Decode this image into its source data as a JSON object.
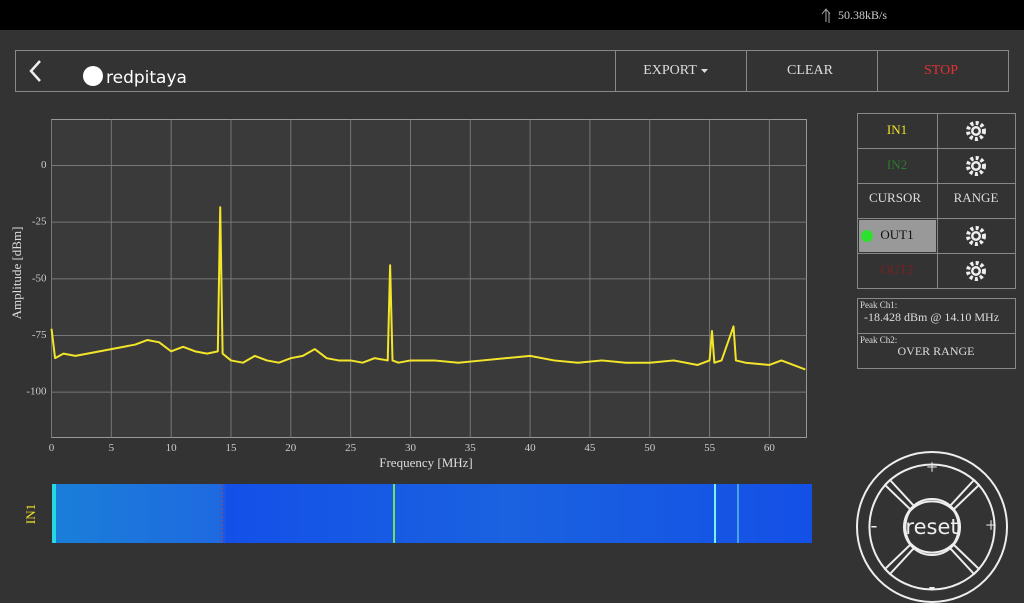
{
  "status_bar": {
    "speed": "50.38kB/s"
  },
  "header": {
    "logo": "redpitaya",
    "buttons": [
      "EXPORT",
      "CLEAR",
      "STOP"
    ]
  },
  "chart_data": {
    "type": "line",
    "xlabel": "Frequency  [MHz]",
    "ylabel": "Amplitude  [dBm]",
    "x": [
      0,
      0.3,
      1,
      2,
      3,
      4,
      5,
      6,
      7,
      8,
      9,
      10,
      11,
      12,
      13,
      13.9,
      14.1,
      14.3,
      15,
      16,
      17,
      18,
      19,
      20,
      21,
      22,
      23,
      24,
      25,
      26,
      27,
      28.1,
      28.3,
      28.5,
      29,
      30,
      32,
      34,
      36,
      38,
      40,
      42,
      44,
      46,
      48,
      50,
      52,
      54,
      55,
      55.2,
      55.4,
      56,
      57,
      57.2,
      58,
      60,
      61,
      62,
      63
    ],
    "series": [
      {
        "name": "IN1",
        "color": "#f2e52a",
        "values": [
          -72,
          -85,
          -83,
          -84,
          -83,
          -82,
          -81,
          -80,
          -79,
          -77,
          -78,
          -82,
          -80,
          -82,
          -83,
          -82,
          -18.4,
          -83,
          -86,
          -87,
          -84,
          -86,
          -87,
          -85,
          -84,
          -81,
          -85,
          -86,
          -86,
          -87,
          -85,
          -86,
          -44,
          -86,
          -87,
          -86,
          -86,
          -87,
          -86,
          -85,
          -84,
          -86,
          -87,
          -86,
          -87,
          -87,
          -86,
          -88,
          -86,
          -73,
          -87,
          -86,
          -71,
          -86,
          -87,
          -88,
          -86,
          -88,
          -90
        ]
      }
    ],
    "xlim": [
      0,
      63.1
    ],
    "ylim": [
      -120,
      20.3
    ],
    "xticks": [
      0,
      5,
      10,
      15,
      20,
      25,
      30,
      35,
      40,
      45,
      50,
      55,
      60
    ],
    "yticks": [
      0,
      -25,
      -50,
      -75,
      -100
    ],
    "grid": true
  },
  "panel": {
    "rows": [
      [
        "IN1",
        ""
      ],
      [
        "IN2",
        ""
      ],
      [
        "CURSOR",
        "RANGE"
      ],
      [
        "OUT1",
        ""
      ],
      [
        "OUT2",
        ""
      ]
    ]
  },
  "peaks": {
    "ch1_label": "Peak  Ch1:",
    "ch1_value": "-18.428  dBm @ 14.10  MHz",
    "ch2_label": "Peak  Ch2:",
    "ch2_value": "OVER RANGE"
  },
  "waterfall": {
    "label": "IN1"
  },
  "nav": {
    "up": "+",
    "down": "-",
    "left": "-",
    "right": "+",
    "center": "reset"
  }
}
